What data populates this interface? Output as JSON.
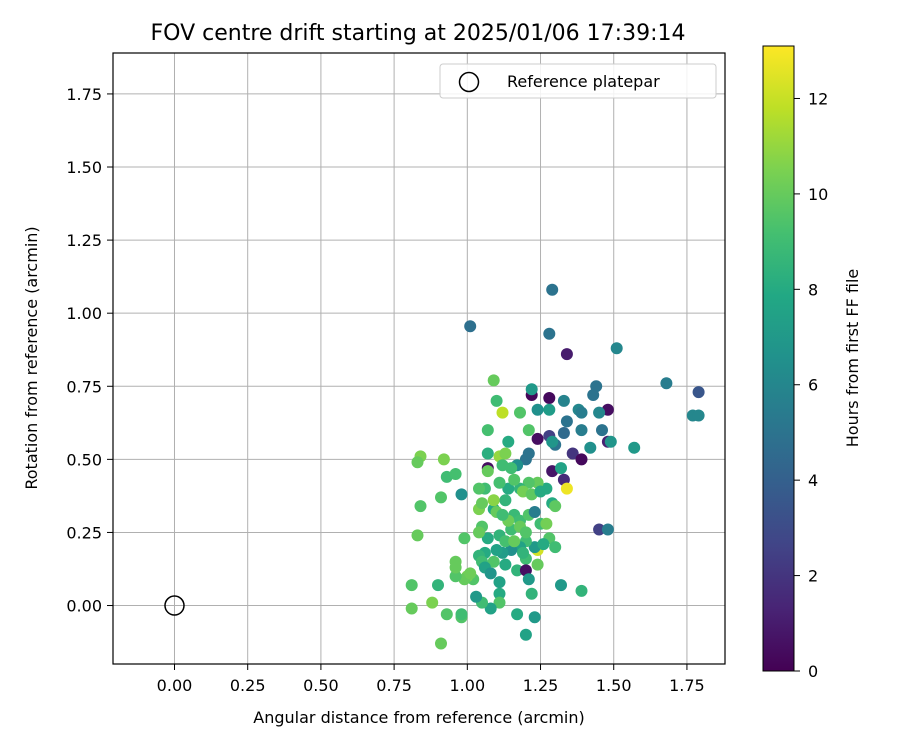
{
  "chart_data": {
    "type": "scatter",
    "title": "FOV centre drift starting at 2025/01/06 17:39:14",
    "xlabel": "Angular distance from reference (arcmin)",
    "ylabel": "Rotation from reference (arcmin)",
    "xlim": [
      -0.21,
      1.88
    ],
    "ylim": [
      -0.2,
      1.89
    ],
    "xticks": [
      "0.00",
      "0.25",
      "0.50",
      "0.75",
      "1.00",
      "1.25",
      "1.50",
      "1.75"
    ],
    "yticks": [
      "0.00",
      "0.25",
      "0.50",
      "0.75",
      "1.00",
      "1.25",
      "1.50",
      "1.75"
    ],
    "grid": true,
    "legend": {
      "position": "top-right",
      "entries": [
        "Reference platepar"
      ]
    },
    "reference_point": {
      "x": 0.0,
      "y": 0.0,
      "label": "Reference platepar"
    },
    "colorbar": {
      "label": "Hours from first FF file",
      "min": 0,
      "max": 13.1,
      "ticks": [
        "0",
        "2",
        "4",
        "6",
        "8",
        "10",
        "12"
      ],
      "colormap": "viridis"
    },
    "series": [
      {
        "points": [
          [
            1.29,
            1.08,
            5.0
          ],
          [
            1.01,
            0.955,
            4.8
          ],
          [
            1.28,
            0.93,
            5.0
          ],
          [
            1.34,
            0.86,
            1.0
          ],
          [
            1.51,
            0.88,
            6.0
          ],
          [
            1.68,
            0.76,
            5.5
          ],
          [
            1.79,
            0.73,
            3.5
          ],
          [
            1.77,
            0.65,
            6.0
          ],
          [
            1.79,
            0.65,
            6.0
          ],
          [
            1.57,
            0.54,
            7.0
          ],
          [
            1.44,
            0.75,
            5.0
          ],
          [
            1.43,
            0.72,
            5.0
          ],
          [
            1.48,
            0.67,
            0.5
          ],
          [
            1.45,
            0.66,
            6.0
          ],
          [
            1.38,
            0.67,
            6.0
          ],
          [
            1.39,
            0.66,
            5.5
          ],
          [
            1.33,
            0.7,
            5.8
          ],
          [
            1.28,
            0.71,
            0.3
          ],
          [
            1.22,
            0.72,
            0.2
          ],
          [
            1.22,
            0.74,
            7.0
          ],
          [
            1.24,
            0.67,
            6.5
          ],
          [
            1.28,
            0.67,
            7.2
          ],
          [
            1.12,
            0.66,
            11.8
          ],
          [
            1.1,
            0.7,
            9.0
          ],
          [
            1.09,
            0.77,
            10.0
          ],
          [
            1.46,
            0.6,
            5.0
          ],
          [
            1.39,
            0.6,
            5.5
          ],
          [
            1.34,
            0.63,
            5.0
          ],
          [
            1.33,
            0.59,
            4.5
          ],
          [
            1.28,
            0.58,
            2.5
          ],
          [
            1.24,
            0.57,
            0.5
          ],
          [
            1.3,
            0.55,
            5.0
          ],
          [
            1.42,
            0.54,
            6.5
          ],
          [
            1.48,
            0.56,
            1.2
          ],
          [
            1.49,
            0.56,
            6.8
          ],
          [
            1.36,
            0.52,
            2.0
          ],
          [
            1.39,
            0.5,
            0.3
          ],
          [
            1.21,
            0.52,
            5.0
          ],
          [
            1.2,
            0.5,
            5.0
          ],
          [
            1.17,
            0.48,
            6.5
          ],
          [
            1.14,
            0.56,
            8.0
          ],
          [
            1.18,
            0.66,
            9.5
          ],
          [
            1.11,
            0.51,
            11.0
          ],
          [
            1.13,
            0.52,
            10.5
          ],
          [
            1.12,
            0.48,
            9.0
          ],
          [
            1.07,
            0.52,
            8.2
          ],
          [
            1.07,
            0.6,
            9.2
          ],
          [
            1.07,
            0.47,
            0.5
          ],
          [
            1.07,
            0.46,
            10.0
          ],
          [
            1.29,
            0.46,
            0.8
          ],
          [
            1.32,
            0.47,
            7.5
          ],
          [
            1.33,
            0.43,
            1.5
          ],
          [
            1.34,
            0.4,
            12.8
          ],
          [
            1.27,
            0.4,
            8.0
          ],
          [
            1.24,
            0.42,
            10.0
          ],
          [
            1.21,
            0.42,
            9.5
          ],
          [
            1.18,
            0.4,
            8.5
          ],
          [
            1.14,
            0.4,
            8.0
          ],
          [
            1.11,
            0.42,
            9.2
          ],
          [
            1.06,
            0.4,
            9.0
          ],
          [
            1.04,
            0.4,
            9.5
          ],
          [
            0.98,
            0.38,
            6.5
          ],
          [
            0.93,
            0.44,
            9.0
          ],
          [
            0.96,
            0.45,
            9.2
          ],
          [
            0.92,
            0.5,
            10.5
          ],
          [
            0.84,
            0.51,
            10.5
          ],
          [
            0.83,
            0.49,
            10.0
          ],
          [
            0.91,
            0.37,
            9.5
          ],
          [
            0.84,
            0.34,
            9.5
          ],
          [
            0.83,
            0.24,
            10.0
          ],
          [
            0.99,
            0.23,
            9.5
          ],
          [
            1.04,
            0.33,
            10.5
          ],
          [
            1.05,
            0.35,
            10.0
          ],
          [
            1.09,
            0.33,
            8.0
          ],
          [
            1.1,
            0.32,
            10.0
          ],
          [
            1.13,
            0.36,
            8.5
          ],
          [
            1.16,
            0.31,
            8.8
          ],
          [
            1.18,
            0.29,
            9.0
          ],
          [
            1.21,
            0.31,
            9.5
          ],
          [
            1.23,
            0.32,
            5.5
          ],
          [
            1.25,
            0.28,
            9.0
          ],
          [
            1.27,
            0.28,
            10.3
          ],
          [
            1.29,
            0.35,
            8.0
          ],
          [
            1.3,
            0.34,
            9.8
          ],
          [
            1.28,
            0.23,
            9.5
          ],
          [
            1.3,
            0.2,
            9.0
          ],
          [
            1.24,
            0.19,
            12.2
          ],
          [
            1.23,
            0.2,
            7.0
          ],
          [
            1.26,
            0.21,
            8.0
          ],
          [
            1.2,
            0.22,
            9.0
          ],
          [
            1.18,
            0.2,
            7.5
          ],
          [
            1.15,
            0.19,
            6.5
          ],
          [
            1.12,
            0.18,
            7.2
          ],
          [
            1.1,
            0.19,
            7.5
          ],
          [
            1.07,
            0.23,
            8.0
          ],
          [
            1.05,
            0.27,
            9.5
          ],
          [
            1.04,
            0.25,
            10.0
          ],
          [
            1.06,
            0.18,
            8.0
          ],
          [
            1.04,
            0.17,
            8.5
          ],
          [
            1.05,
            0.15,
            9.0
          ],
          [
            1.09,
            0.15,
            9.5
          ],
          [
            1.13,
            0.14,
            8.0
          ],
          [
            1.17,
            0.12,
            8.5
          ],
          [
            1.2,
            0.16,
            9.0
          ],
          [
            1.24,
            0.14,
            10.0
          ],
          [
            1.45,
            0.26,
            2.5
          ],
          [
            1.48,
            0.26,
            5.5
          ],
          [
            1.2,
            0.12,
            0.5
          ],
          [
            1.21,
            0.09,
            7.0
          ],
          [
            1.22,
            0.04,
            8.5
          ],
          [
            1.32,
            0.07,
            7.0
          ],
          [
            1.39,
            0.05,
            8.5
          ],
          [
            1.17,
            -0.03,
            8.0
          ],
          [
            1.2,
            -0.1,
            7.5
          ],
          [
            1.23,
            -0.04,
            7.0
          ],
          [
            1.11,
            0.08,
            7.5
          ],
          [
            1.11,
            0.04,
            8.0
          ],
          [
            1.11,
            0.01,
            9.5
          ],
          [
            1.08,
            -0.01,
            7.5
          ],
          [
            1.05,
            0.01,
            9.0
          ],
          [
            1.03,
            0.03,
            7.0
          ],
          [
            1.02,
            0.09,
            9.5
          ],
          [
            1.0,
            0.1,
            10.5
          ],
          [
            0.99,
            0.09,
            10.0
          ],
          [
            0.96,
            0.1,
            9.5
          ],
          [
            0.96,
            0.13,
            10.0
          ],
          [
            0.96,
            0.15,
            10.0
          ],
          [
            0.98,
            -0.04,
            9.5
          ],
          [
            0.98,
            -0.03,
            9.0
          ],
          [
            0.93,
            -0.03,
            9.5
          ],
          [
            0.91,
            -0.13,
            10.0
          ],
          [
            0.88,
            0.01,
            10.5
          ],
          [
            0.81,
            -0.01,
            10.0
          ],
          [
            0.81,
            0.07,
            9.5
          ],
          [
            0.9,
            0.07,
            8.5
          ],
          [
            1.15,
            0.26,
            9.0
          ],
          [
            1.18,
            0.27,
            10.0
          ],
          [
            1.2,
            0.25,
            9.5
          ],
          [
            1.14,
            0.29,
            10.2
          ],
          [
            1.12,
            0.31,
            9.0
          ],
          [
            1.16,
            0.43,
            9.5
          ],
          [
            1.19,
            0.39,
            10.3
          ],
          [
            1.22,
            0.38,
            9.8
          ],
          [
            1.25,
            0.39,
            8.0
          ],
          [
            1.15,
            0.47,
            9.0
          ],
          [
            1.21,
            0.6,
            9.5
          ],
          [
            1.29,
            0.56,
            6.8
          ],
          [
            1.09,
            0.36,
            10.8
          ],
          [
            1.11,
            0.24,
            8.5
          ],
          [
            1.13,
            0.22,
            9.2
          ],
          [
            1.16,
            0.22,
            10.0
          ],
          [
            1.19,
            0.18,
            8.5
          ],
          [
            1.06,
            0.13,
            7.5
          ],
          [
            1.08,
            0.11,
            6.8
          ],
          [
            1.01,
            0.11,
            10.2
          ]
        ]
      }
    ]
  }
}
